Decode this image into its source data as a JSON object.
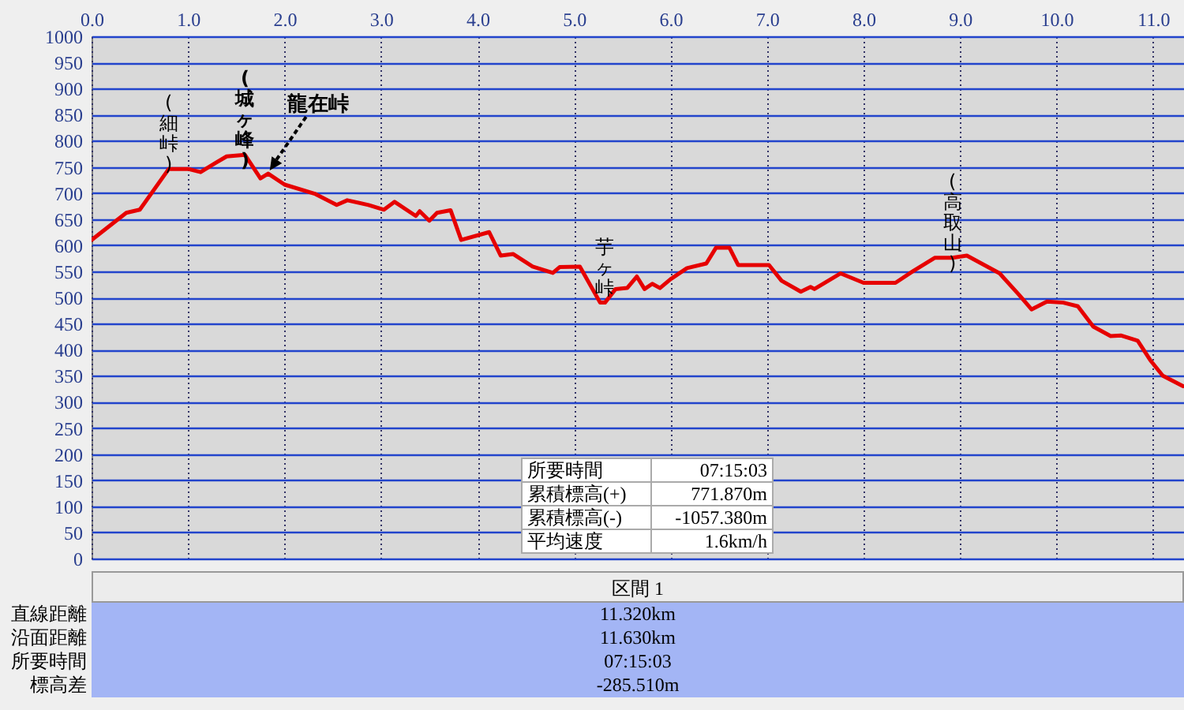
{
  "chart_data": {
    "type": "line",
    "x": [
      0,
      0.36,
      0.5,
      0.8,
      1.0,
      1.13,
      1.29,
      1.4,
      1.59,
      1.75,
      1.83,
      2.0,
      2.32,
      2.54,
      2.65,
      2.87,
      3.03,
      3.14,
      3.36,
      3.4,
      3.5,
      3.58,
      3.72,
      3.83,
      4.12,
      4.24,
      4.37,
      4.57,
      4.78,
      4.85,
      5.06,
      5.27,
      5.32,
      5.43,
      5.55,
      5.65,
      5.73,
      5.81,
      5.89,
      6.0,
      6.17,
      6.37,
      6.47,
      6.61,
      6.7,
      7.02,
      7.15,
      7.35,
      7.45,
      7.49,
      7.76,
      8.0,
      8.33,
      8.51,
      8.74,
      8.92,
      9.07,
      9.41,
      9.61,
      9.74,
      9.9,
      10.07,
      10.22,
      10.38,
      10.56,
      10.67,
      10.84,
      10.97,
      11.1,
      11.31
    ],
    "series": [
      {
        "color": "#e60000",
        "values": [
          610,
          662,
          668,
          746,
          746,
          740,
          758,
          770,
          773,
          728,
          737,
          716,
          698,
          677,
          686,
          677,
          668,
          683,
          656,
          665,
          647,
          662,
          667,
          610,
          625,
          580,
          583,
          559,
          547,
          558,
          559,
          490,
          490,
          516,
          518,
          540,
          516,
          526,
          518,
          535,
          556,
          565,
          595,
          595,
          562,
          562,
          532,
          511,
          520,
          516,
          546,
          528,
          528,
          550,
          576,
          576,
          580,
          546,
          505,
          477,
          492,
          490,
          483,
          444,
          426,
          427,
          417,
          380,
          350,
          330
        ]
      }
    ],
    "xlim": [
      0,
      11.32
    ],
    "xticks": [
      {
        "value": 0,
        "label": "0.0"
      },
      {
        "value": 1,
        "label": "1.0"
      },
      {
        "value": 2,
        "label": "2.0"
      },
      {
        "value": 3,
        "label": "3.0"
      },
      {
        "value": 4,
        "label": "4.0"
      },
      {
        "value": 5,
        "label": "5.0"
      },
      {
        "value": 6,
        "label": "6.0"
      },
      {
        "value": 7,
        "label": "7.0"
      },
      {
        "value": 8,
        "label": "8.0"
      },
      {
        "value": 9,
        "label": "9.0"
      },
      {
        "value": 10,
        "label": "10.0"
      },
      {
        "value": 11,
        "label": "11.0"
      }
    ],
    "ylim": [
      0,
      1000
    ],
    "yticks": [
      0,
      50,
      100,
      150,
      200,
      250,
      300,
      350,
      400,
      450,
      500,
      550,
      600,
      650,
      700,
      750,
      800,
      850,
      900,
      950,
      1000
    ],
    "grid": true,
    "annotations": [
      {
        "text": "(細峠)",
        "x": 0.8,
        "y": 746
      },
      {
        "text": "(城ヶ峰)",
        "x": 1.59,
        "y": 773
      },
      {
        "text": "龍在峠",
        "x": 1.83,
        "y": 737
      },
      {
        "text": "芋ヶ峠",
        "x": 5.32,
        "y": 490
      },
      {
        "text": "(高取山)",
        "x": 8.92,
        "y": 576
      },
      "所要時間",
      "07:15:03",
      "累積標高(+)",
      "771.870m",
      "累積標高(-)",
      "-1057.380m",
      "平均速度",
      "1.6km/h",
      "区間 1",
      "直線距離",
      "11.320km",
      "沿面距離",
      "11.630km",
      "所要時間",
      "07:15:03",
      "標高差",
      "-285.510m"
    ]
  }
}
